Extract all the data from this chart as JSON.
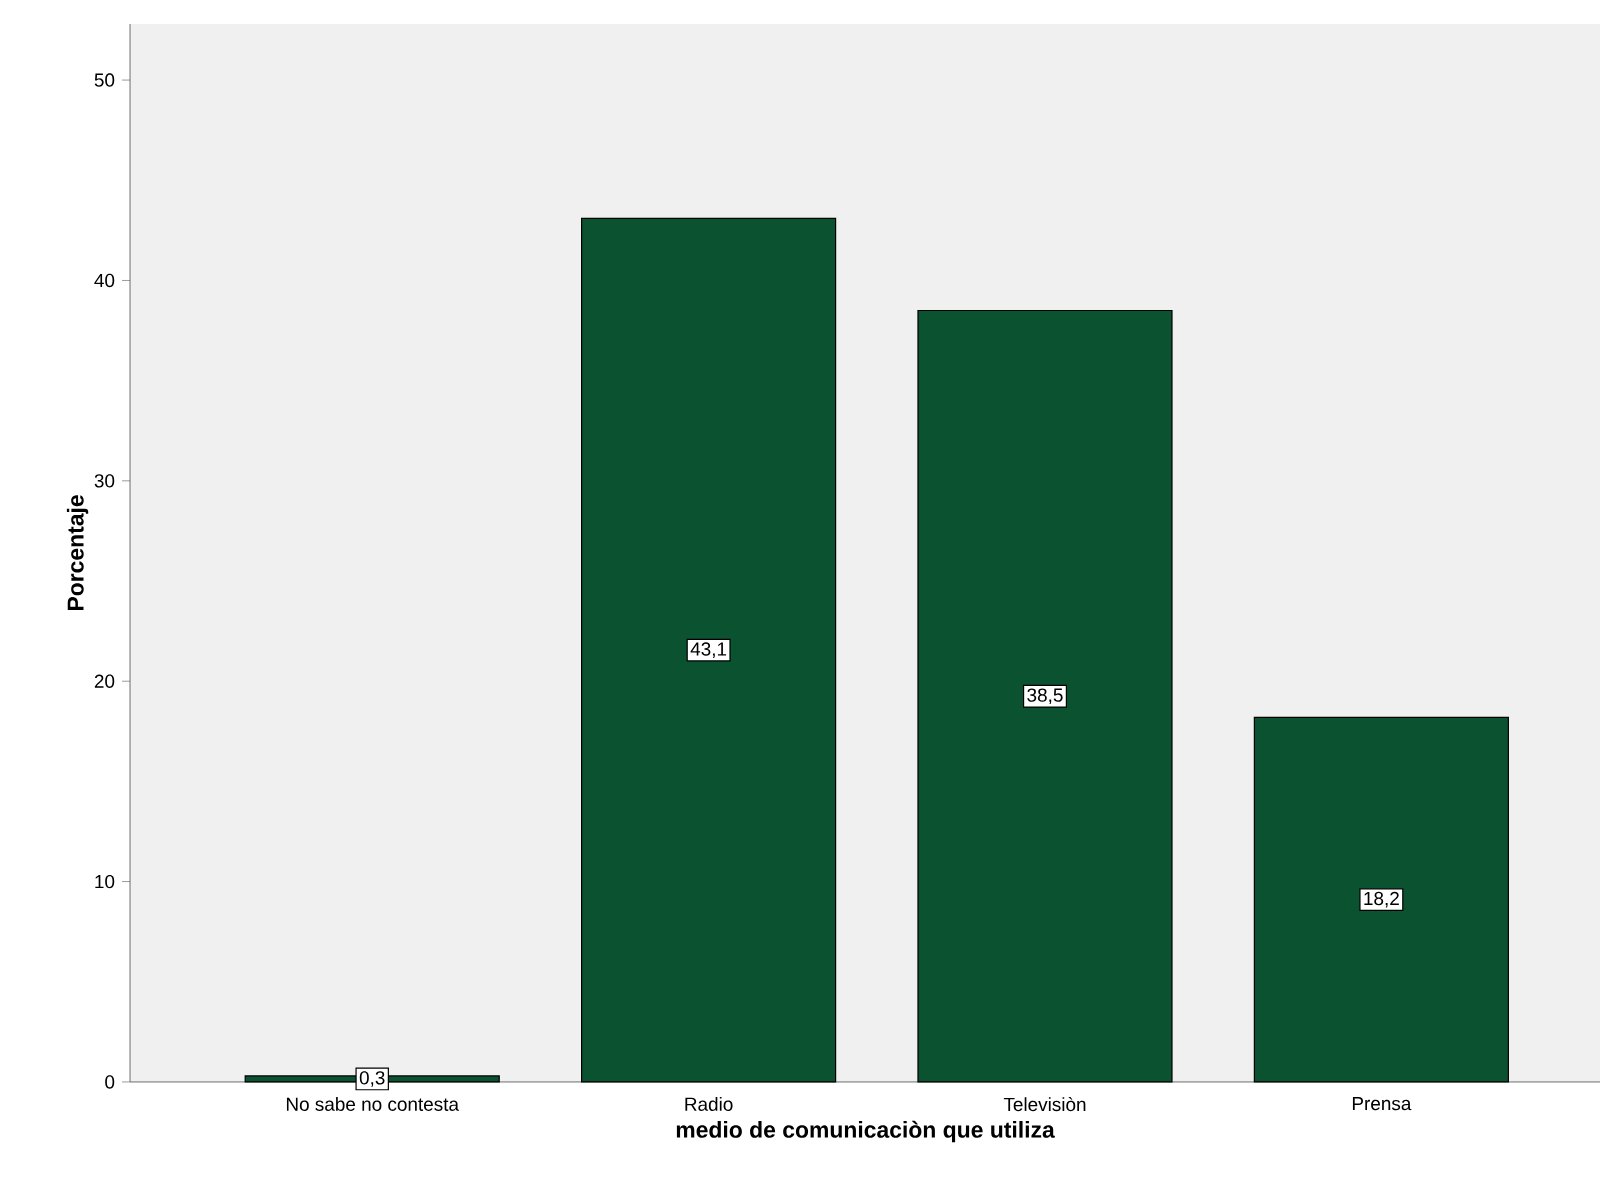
{
  "chart_data": {
    "type": "bar",
    "xlabel": "medio de comunicaciòn que utiliza",
    "ylabel": "Porcentaje",
    "categories": [
      "No sabe no contesta",
      "Radio",
      "Televisiòn",
      "Prensa"
    ],
    "values": [
      0.3,
      43.1,
      38.5,
      18.2
    ],
    "value_labels": [
      "0,3",
      "43,1",
      "38,5",
      "18,2"
    ],
    "color": "#0b5230",
    "ylim": [
      0,
      52.8
    ],
    "yticks": [
      0,
      10,
      20,
      30,
      40,
      50
    ],
    "grid": false
  }
}
